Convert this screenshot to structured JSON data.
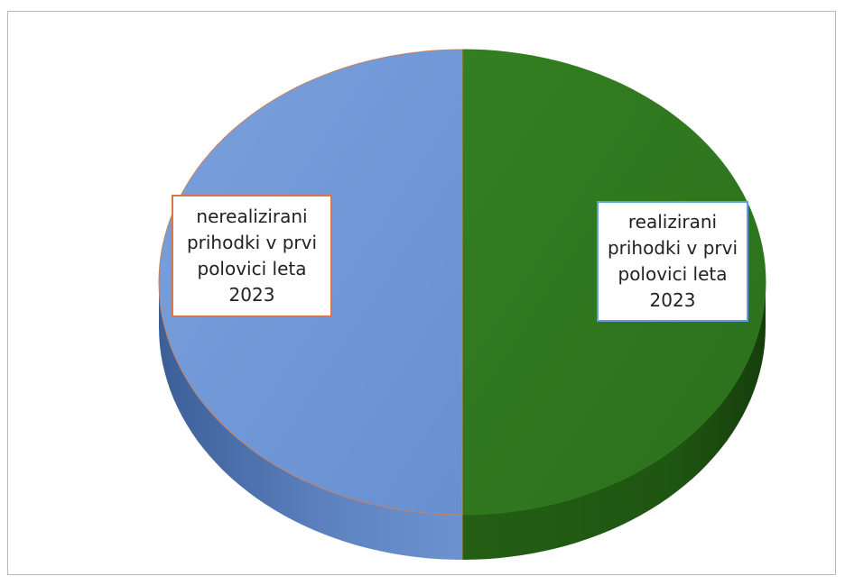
{
  "chart_data": {
    "type": "pie",
    "title": "",
    "slices": [
      {
        "label": "nerealizirani prihodki v prvi polovici leta 2023",
        "value": 50,
        "color": "#6f96d4"
      },
      {
        "label": "realizirani prihodki v prvi polovici leta 2023",
        "value": 50,
        "color": "#2f7a1f"
      }
    ],
    "legend": "none",
    "style": "3d"
  }
}
